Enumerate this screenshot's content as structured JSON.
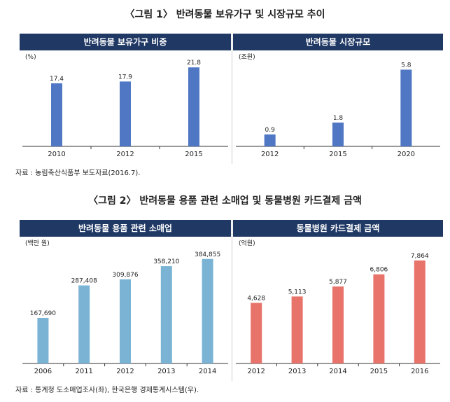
{
  "figure1": {
    "title": "〈그림 1〉 반려동물 보유가구 및 시장규모 추이",
    "source": "자료 : 농림축산식품부 보도자료(2016.7)."
  },
  "figure2": {
    "title": "〈그림 2〉 반려동물 용품 관련 소매업 및 동물병원 카드결제 금액",
    "source": "자료 : 통계청 도소매업조사(좌), 한국은행 경제통계시스템(우)."
  },
  "colors": {
    "header": "#1f3864",
    "blue": "#4f77c4",
    "lightblue": "#7ab3d4",
    "red": "#e8736a"
  },
  "chart_data": [
    {
      "type": "bar",
      "title": "반려동물 보유가구 비중",
      "unit": "(%)",
      "categories": [
        "2010",
        "2012",
        "2015"
      ],
      "values": [
        17.4,
        17.9,
        21.8
      ],
      "labels": [
        "17.4",
        "17.9",
        "21.8"
      ],
      "ylim": [
        0,
        23
      ],
      "color": "#4f77c4"
    },
    {
      "type": "bar",
      "title": "반려동물 시장규모",
      "unit": "(조원)",
      "categories": [
        "2012",
        "2015",
        "2020"
      ],
      "values": [
        0.9,
        1.8,
        5.8
      ],
      "labels": [
        "0.9",
        "1.8",
        "5.8"
      ],
      "ylim": [
        0,
        6.3
      ],
      "color": "#4f77c4"
    },
    {
      "type": "bar",
      "title": "반려동물 용품 관련 소매업",
      "unit": "(백만 원)",
      "categories": [
        "2006",
        "2011",
        "2012",
        "2013",
        "2014"
      ],
      "values": [
        167690,
        287408,
        309876,
        358210,
        384855
      ],
      "labels": [
        "167,690",
        "287,408",
        "309,876",
        "358,210",
        "384,855"
      ],
      "ylim": [
        0,
        410000
      ],
      "color": "#7ab3d4"
    },
    {
      "type": "bar",
      "title": "동물병원 카드결제 금액",
      "unit": "(억원)",
      "categories": [
        "2012",
        "2013",
        "2014",
        "2015",
        "2016"
      ],
      "values": [
        4628,
        5113,
        5877,
        6806,
        7864
      ],
      "labels": [
        "4,628",
        "5,113",
        "5,877",
        "6,806",
        "7,864"
      ],
      "ylim": [
        0,
        8500
      ],
      "color": "#e8736a"
    }
  ]
}
